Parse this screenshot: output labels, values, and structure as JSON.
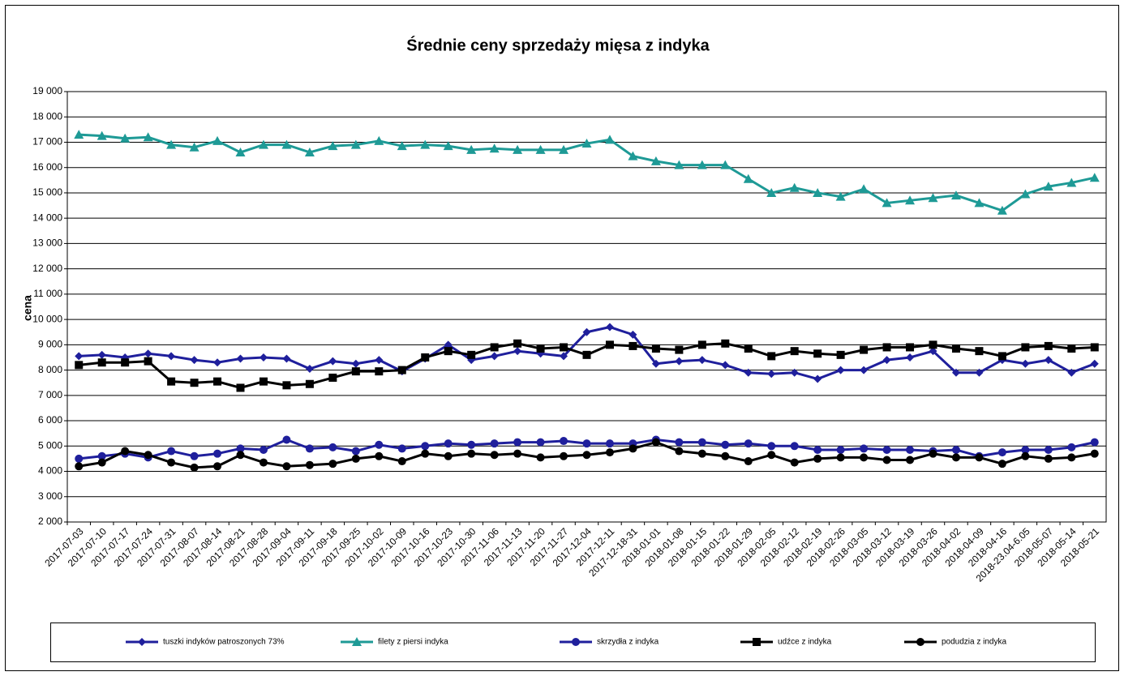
{
  "chart_data": {
    "type": "line",
    "title": "Średnie ceny sprzedaży mięsa z indyka",
    "y_label": "cena",
    "categories": [
      "2017-07-03",
      "2017-07-10",
      "2017-07-17",
      "2017-07-24",
      "2017-07-31",
      "2017-08-07",
      "2017-08-14",
      "2017-08-21",
      "2017-08-28",
      "2017-09-04",
      "2017-09-11",
      "2017-09-18",
      "2017-09-25",
      "2017-10-02",
      "2017-10-09",
      "2017-10-16",
      "2017-10-23",
      "2017-10-30",
      "2017-11-06",
      "2017-11-13",
      "2017-11-20",
      "2017-11-27",
      "2017-12-04",
      "2017-12-11",
      "2017-12-18-31",
      "2018-01-01",
      "2018-01-08",
      "2018-01-15",
      "2018-01-22",
      "2018-01-29",
      "2018-02-05",
      "2018-02-12",
      "2018-02-19",
      "2018-02-26",
      "2018-03-05",
      "2018-03-12",
      "2018-03-19",
      "2018-03-26",
      "2018-04-02",
      "2018-04-09",
      "2018-04-16",
      "2018-23.04-6.05",
      "2018-05-07",
      "2018-05-14",
      "2018-05-21"
    ],
    "series": [
      {
        "name": "tuszki indyków patroszonych 73%",
        "color": "#1f1f9c",
        "marker": "diamond",
        "values": [
          8550,
          8600,
          8500,
          8650,
          8550,
          8400,
          8300,
          8450,
          8500,
          8450,
          8050,
          8350,
          8250,
          8400,
          7950,
          8450,
          9000,
          8400,
          8550,
          8750,
          8650,
          8550,
          9500,
          9700,
          9400,
          8250,
          8350,
          8400,
          8200,
          7900,
          7850,
          7900,
          7650,
          8000,
          8000,
          8400,
          8500,
          8750,
          7900,
          7900,
          8400,
          8250,
          8400,
          7900,
          8250
        ]
      },
      {
        "name": "filety z piersi indyka",
        "color": "#1e9a96",
        "marker": "triangle",
        "values": [
          17300,
          17250,
          17150,
          17200,
          16900,
          16800,
          17050,
          16600,
          16900,
          16900,
          16600,
          16850,
          16900,
          17050,
          16850,
          16900,
          16850,
          16700,
          16750,
          16700,
          16700,
          16700,
          16950,
          17100,
          16450,
          16250,
          16100,
          16100,
          16100,
          15550,
          15000,
          15200,
          15000,
          14850,
          15150,
          14600,
          14700,
          14800,
          14900,
          14600,
          14300,
          14950,
          15250,
          15400,
          15600
        ]
      },
      {
        "name": "skrzydła z indyka",
        "color": "#1f1f9c",
        "marker": "circle",
        "values": [
          4500,
          4600,
          4700,
          4550,
          4800,
          4600,
          4700,
          4900,
          4850,
          5250,
          4900,
          4950,
          4800,
          5050,
          4900,
          5000,
          5100,
          5050,
          5100,
          5150,
          5150,
          5200,
          5100,
          5100,
          5100,
          5250,
          5150,
          5150,
          5050,
          5100,
          5000,
          5000,
          4850,
          4850,
          4900,
          4850,
          4850,
          4800,
          4850,
          4600,
          4750,
          4850,
          4850,
          4950,
          5150
        ]
      },
      {
        "name": "udźce z indyka",
        "color": "#000000",
        "marker": "square",
        "values": [
          8200,
          8300,
          8300,
          8350,
          7550,
          7500,
          7550,
          7300,
          7550,
          7400,
          7450,
          7700,
          7950,
          7950,
          8000,
          8500,
          8750,
          8600,
          8900,
          9050,
          8850,
          8900,
          8600,
          9000,
          8950,
          8850,
          8800,
          9000,
          9050,
          8850,
          8550,
          8750,
          8650,
          8600,
          8800,
          8900,
          8900,
          9000,
          8850,
          8750,
          8550,
          8900,
          8950,
          8850,
          8900
        ]
      },
      {
        "name": "podudzia z indyka",
        "color": "#000000",
        "marker": "circle",
        "values": [
          4200,
          4350,
          4800,
          4650,
          4350,
          4150,
          4200,
          4650,
          4350,
          4200,
          4250,
          4300,
          4500,
          4600,
          4400,
          4700,
          4600,
          4700,
          4650,
          4700,
          4550,
          4600,
          4650,
          4750,
          4900,
          5150,
          4800,
          4700,
          4600,
          4400,
          4650,
          4350,
          4500,
          4550,
          4550,
          4450,
          4450,
          4700,
          4550,
          4550,
          4300,
          4600,
          4500,
          4550,
          4700
        ]
      }
    ],
    "ylim": [
      2000,
      19000
    ],
    "yticks": [
      {
        "value": 2000,
        "label": "2 000"
      },
      {
        "value": 3000,
        "label": "3 000"
      },
      {
        "value": 4000,
        "label": "4 000"
      },
      {
        "value": 5000,
        "label": "5 000"
      },
      {
        "value": 6000,
        "label": "6 000"
      },
      {
        "value": 7000,
        "label": "7 000"
      },
      {
        "value": 8000,
        "label": "8 000"
      },
      {
        "value": 9000,
        "label": "9 000"
      },
      {
        "value": 10000,
        "label": "10 000"
      },
      {
        "value": 11000,
        "label": "11 000"
      },
      {
        "value": 12000,
        "label": "12 000"
      },
      {
        "value": 13000,
        "label": "13 000"
      },
      {
        "value": 14000,
        "label": "14 000"
      },
      {
        "value": 15000,
        "label": "15 000"
      },
      {
        "value": 16000,
        "label": "16 000"
      },
      {
        "value": 17000,
        "label": "17 000"
      },
      {
        "value": 18000,
        "label": "18 000"
      },
      {
        "value": 19000,
        "label": "19 000"
      }
    ],
    "grid": true,
    "legend": "bottom"
  }
}
